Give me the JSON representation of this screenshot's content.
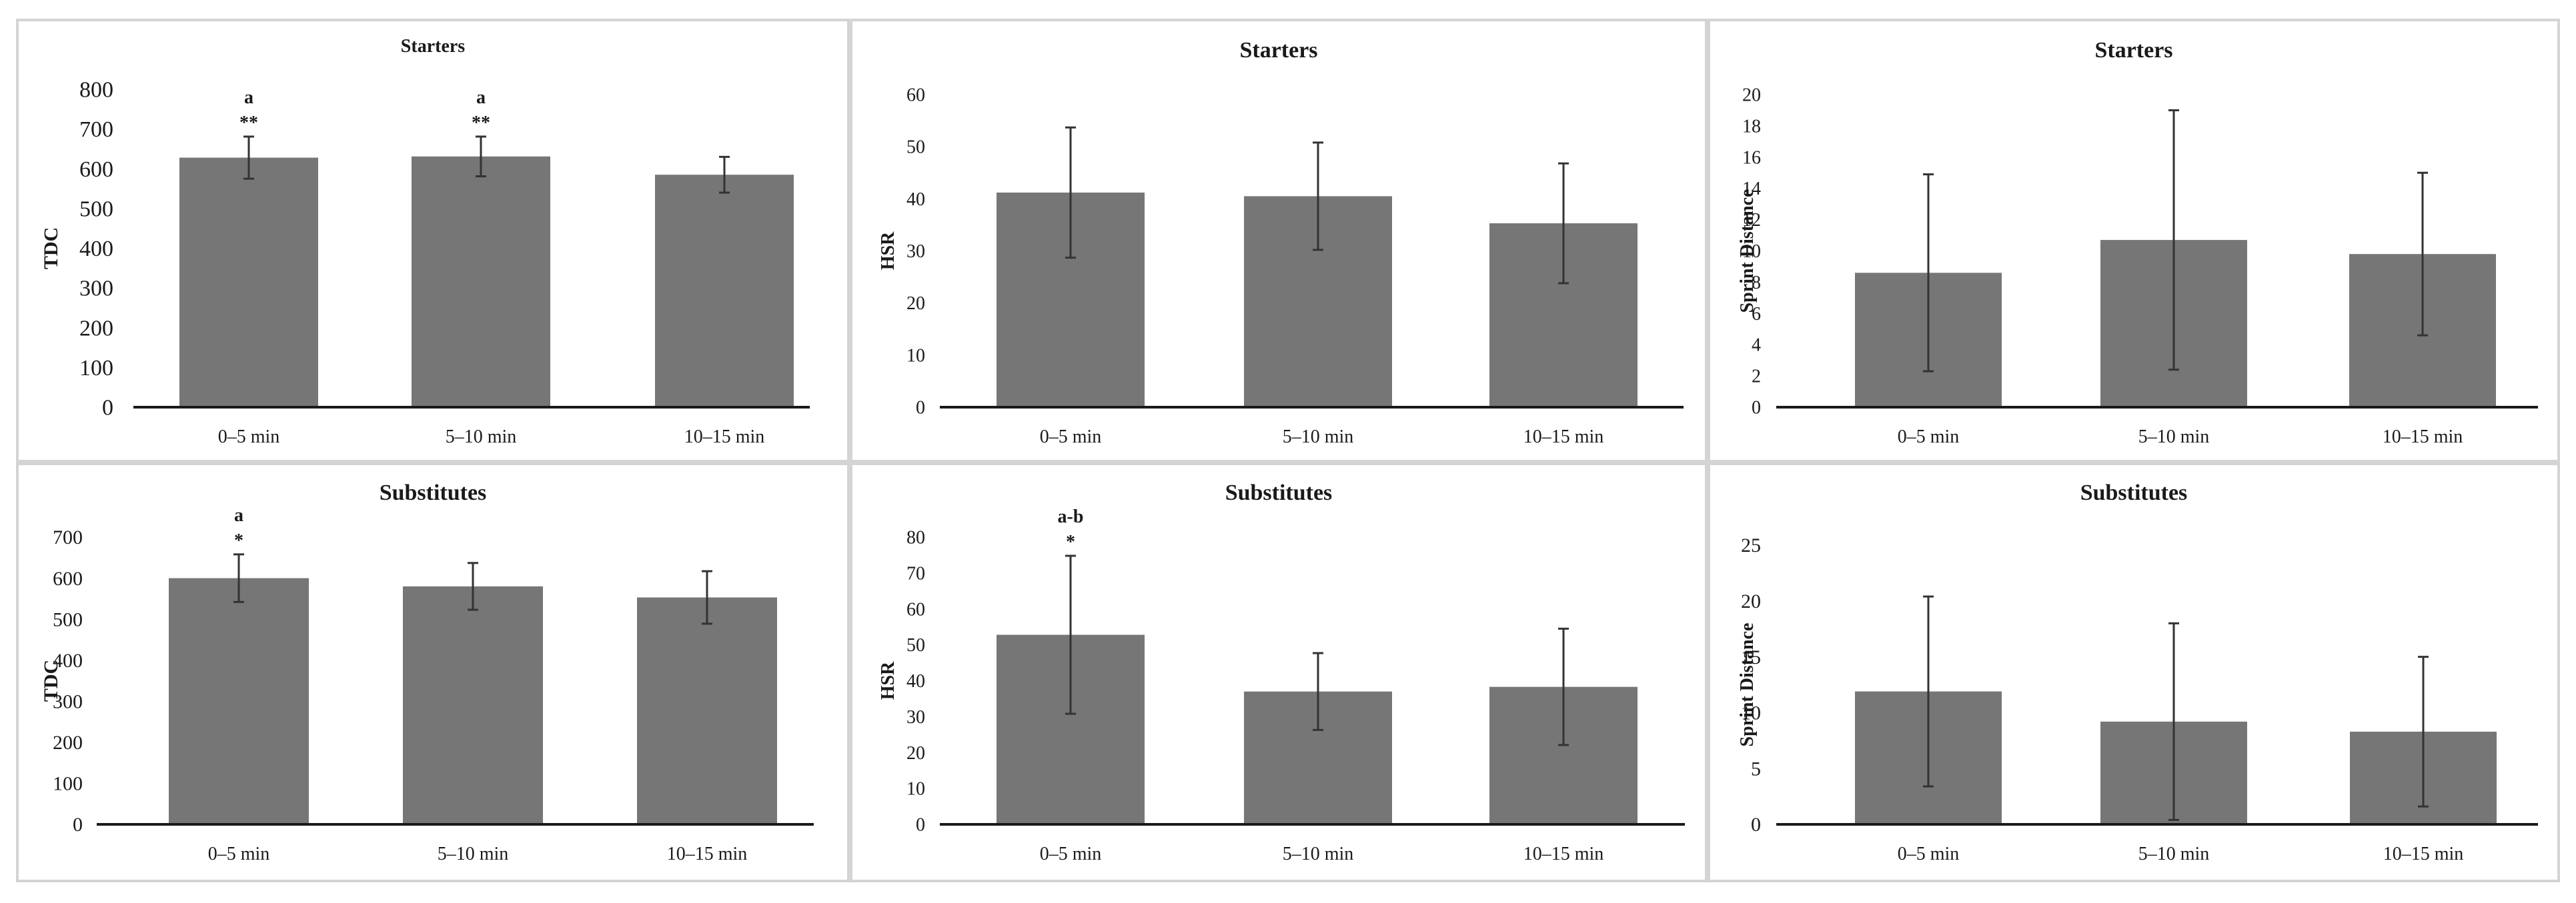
{
  "colors": {
    "bar": "#767676",
    "axis": "#1a1a1a",
    "border": "#d4d4d4"
  },
  "chart_data": [
    {
      "type": "bar",
      "title": "Starters",
      "ylabel": "TDC",
      "categories": [
        "0–5 min",
        "5–10 min",
        "10–15 min"
      ],
      "values": [
        628,
        631,
        585
      ],
      "errors": [
        53,
        50,
        45
      ],
      "annotations": [
        [
          "a",
          "**"
        ],
        [
          "a",
          "**"
        ],
        []
      ],
      "ylim": [
        0,
        800
      ],
      "yticks": [
        "0",
        "100",
        "200",
        "300",
        "400",
        "500",
        "600",
        "700",
        "800"
      ]
    },
    {
      "type": "bar",
      "title": "Starters",
      "ylabel": "HSR",
      "categories": [
        "0–5 min",
        "5–10 min",
        "10–15 min"
      ],
      "values": [
        41.2,
        40.5,
        35.3
      ],
      "errors": [
        12.5,
        10.3,
        11.5
      ],
      "annotations": [
        [],
        [],
        []
      ],
      "ylim": [
        0,
        60
      ],
      "yticks": [
        "0",
        "10",
        "20",
        "30",
        "40",
        "50",
        "60"
      ]
    },
    {
      "type": "bar",
      "title": "Starters",
      "ylabel": "Sprint Distance",
      "categories": [
        "0–5 min",
        "5–10 min",
        "10–15 min"
      ],
      "values": [
        8.6,
        10.7,
        9.8
      ],
      "errors": [
        6.3,
        8.3,
        5.2
      ],
      "annotations": [
        [],
        [],
        []
      ],
      "ylim": [
        0,
        20
      ],
      "yticks": [
        "0",
        "2",
        "4",
        "6",
        "8",
        "10",
        "12",
        "14",
        "16",
        "18",
        "20"
      ]
    },
    {
      "type": "bar",
      "title": "Substitutes",
      "ylabel": "TDC",
      "categories": [
        "0–5 min",
        "5–10 min",
        "10–15 min"
      ],
      "values": [
        600,
        580,
        553
      ],
      "errors": [
        58,
        57,
        64
      ],
      "annotations": [
        [
          "a",
          "*"
        ],
        [],
        []
      ],
      "ylim": [
        0,
        700
      ],
      "yticks": [
        "0",
        "100",
        "200",
        "300",
        "400",
        "500",
        "600",
        "700"
      ]
    },
    {
      "type": "bar",
      "title": "Substitutes",
      "ylabel": "HSR",
      "categories": [
        "0–5 min",
        "5–10 min",
        "10–15 min"
      ],
      "values": [
        52.8,
        37.0,
        38.3
      ],
      "errors": [
        22.0,
        10.7,
        16.2
      ],
      "annotations": [
        [
          "a-b",
          "*"
        ],
        [],
        []
      ],
      "ylim": [
        0,
        80
      ],
      "yticks": [
        "0",
        "10",
        "20",
        "30",
        "40",
        "50",
        "60",
        "70",
        "80"
      ]
    },
    {
      "type": "bar",
      "title": "Substitutes",
      "ylabel": "Sprint Distance",
      "categories": [
        "0–5 min",
        "5–10 min",
        "10–15 min"
      ],
      "values": [
        11.9,
        9.2,
        8.3
      ],
      "errors": [
        8.5,
        8.8,
        6.7
      ],
      "annotations": [
        [],
        [],
        []
      ],
      "ylim": [
        0,
        25
      ],
      "yticks": [
        "0",
        "5",
        "10",
        "15",
        "20",
        "25"
      ]
    }
  ]
}
